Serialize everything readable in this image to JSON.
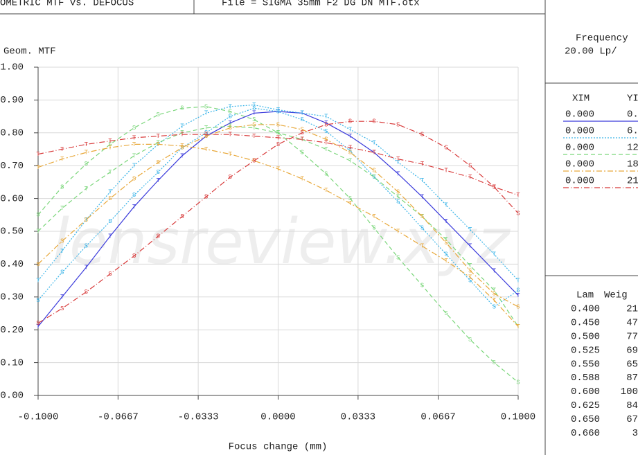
{
  "chart_data": {
    "type": "line",
    "header_left": "OMETRIC MTF vs. DEFOCUS",
    "header_right": "File = SIGMA 35mm F2 DG DN MTF.otx",
    "ylabel": "Geom. MTF",
    "xlabel": "Focus change (mm)",
    "watermark": "lensreview.xyz",
    "grid": true,
    "xlim": [
      -0.1,
      0.1
    ],
    "ylim": [
      0,
      1
    ],
    "xticks": [
      {
        "value": -0.1,
        "label": "-0.1000"
      },
      {
        "value": -0.0667,
        "label": "-0.0667"
      },
      {
        "value": -0.0333,
        "label": "-0.0333"
      },
      {
        "value": 0,
        "label": "0.0000"
      },
      {
        "value": 0.0333,
        "label": "0.0333"
      },
      {
        "value": 0.0667,
        "label": "0.0667"
      },
      {
        "value": 0.1,
        "label": "0.1000"
      }
    ],
    "yticks": [
      {
        "value": 0,
        "label": "0.00"
      },
      {
        "value": 0.1,
        "label": "0.10"
      },
      {
        "value": 0.2,
        "label": "0.20"
      },
      {
        "value": 0.3,
        "label": "0.30"
      },
      {
        "value": 0.4,
        "label": "0.40"
      },
      {
        "value": 0.5,
        "label": "0.50"
      },
      {
        "value": 0.6,
        "label": "0.60"
      },
      {
        "value": 0.7,
        "label": "0.70"
      },
      {
        "value": 0.8,
        "label": "0.80"
      },
      {
        "value": 0.9,
        "label": "0.90"
      },
      {
        "value": 1,
        "label": "1.00"
      }
    ],
    "x": [
      -0.1,
      -0.09,
      -0.08,
      -0.07,
      -0.06,
      -0.05,
      -0.04,
      -0.03,
      -0.02,
      -0.01,
      0,
      0.01,
      0.02,
      0.03,
      0.04,
      0.05,
      0.06,
      0.07,
      0.08,
      0.09,
      0.1
    ],
    "series": [
      {
        "marker": "T",
        "color": "#3b3bdb",
        "dash": "none",
        "values": [
          0.21,
          0.3,
          0.39,
          0.485,
          0.575,
          0.655,
          0.73,
          0.79,
          0.83,
          0.86,
          0.865,
          0.86,
          0.83,
          0.79,
          0.74,
          0.675,
          0.605,
          0.53,
          0.455,
          0.38,
          0.305
        ]
      },
      {
        "marker": "T",
        "color": "#3ab4e8",
        "dash": "2,2",
        "values": [
          0.35,
          0.44,
          0.535,
          0.62,
          0.7,
          0.765,
          0.82,
          0.86,
          0.88,
          0.885,
          0.87,
          0.86,
          0.85,
          0.81,
          0.77,
          0.71,
          0.655,
          0.58,
          0.505,
          0.43,
          0.35
        ]
      },
      {
        "marker": "S",
        "color": "#3ab4e8",
        "dash": "2,2",
        "values": [
          0.29,
          0.375,
          0.455,
          0.53,
          0.61,
          0.68,
          0.755,
          0.8,
          0.85,
          0.875,
          0.865,
          0.84,
          0.805,
          0.745,
          0.665,
          0.59,
          0.51,
          0.43,
          0.35,
          0.27,
          0.32
        ]
      },
      {
        "marker": "T",
        "color": "#7ad67a",
        "dash": "6,4",
        "values": [
          0.5,
          0.57,
          0.63,
          0.68,
          0.73,
          0.77,
          0.8,
          0.815,
          0.82,
          0.815,
          0.8,
          0.78,
          0.75,
          0.715,
          0.665,
          0.605,
          0.545,
          0.475,
          0.395,
          0.32,
          0.21
        ]
      },
      {
        "marker": "S",
        "color": "#7ad67a",
        "dash": "6,4",
        "values": [
          0.55,
          0.635,
          0.705,
          0.765,
          0.815,
          0.855,
          0.875,
          0.88,
          0.865,
          0.84,
          0.8,
          0.74,
          0.675,
          0.6,
          0.51,
          0.42,
          0.335,
          0.25,
          0.17,
          0.1,
          0.04
        ]
      },
      {
        "marker": "T",
        "color": "#e8a83a",
        "dash": "8,3,2,3",
        "values": [
          0.695,
          0.72,
          0.74,
          0.755,
          0.765,
          0.765,
          0.76,
          0.75,
          0.735,
          0.715,
          0.69,
          0.66,
          0.625,
          0.585,
          0.545,
          0.5,
          0.455,
          0.41,
          0.36,
          0.29,
          0.21
        ]
      },
      {
        "marker": "S",
        "color": "#e8a83a",
        "dash": "8,3,2,3",
        "values": [
          0.4,
          0.47,
          0.535,
          0.6,
          0.66,
          0.71,
          0.755,
          0.79,
          0.815,
          0.825,
          0.825,
          0.81,
          0.78,
          0.74,
          0.685,
          0.62,
          0.545,
          0.465,
          0.38,
          0.31,
          0.27
        ]
      },
      {
        "marker": "T",
        "color": "#d83a3a",
        "dash": "8,3,1,3",
        "values": [
          0.735,
          0.75,
          0.765,
          0.775,
          0.785,
          0.79,
          0.795,
          0.795,
          0.795,
          0.79,
          0.785,
          0.78,
          0.77,
          0.755,
          0.74,
          0.72,
          0.705,
          0.685,
          0.665,
          0.635,
          0.61
        ]
      },
      {
        "marker": "S",
        "color": "#d83a3a",
        "dash": "8,3,1,3",
        "values": [
          0.22,
          0.265,
          0.315,
          0.37,
          0.425,
          0.485,
          0.545,
          0.605,
          0.665,
          0.715,
          0.765,
          0.8,
          0.825,
          0.835,
          0.835,
          0.825,
          0.795,
          0.755,
          0.7,
          0.635,
          0.555
        ]
      }
    ],
    "frequency": {
      "label": "Frequency",
      "value": "20.00  Lp/"
    },
    "field_table": {
      "headers": [
        "XIM",
        "YI"
      ],
      "rows": [
        {
          "xim": "0.000",
          "yim": "0.",
          "color": "#3b3bdb",
          "dash": "none"
        },
        {
          "xim": "0.000",
          "yim": "6.",
          "color": "#3ab4e8",
          "dash": "2,2"
        },
        {
          "xim": "0.000",
          "yim": "12.",
          "color": "#7ad67a",
          "dash": "6,4"
        },
        {
          "xim": "0.000",
          "yim": "18.",
          "color": "#e8a83a",
          "dash": "8,3,2,3"
        },
        {
          "xim": "0.000",
          "yim": "21.",
          "color": "#d83a3a",
          "dash": "8,3,1,3"
        }
      ]
    },
    "wave_table": {
      "headers": [
        "Lam",
        "Weig"
      ],
      "rows": [
        [
          "0.400",
          "21"
        ],
        [
          "0.450",
          "47"
        ],
        [
          "0.500",
          "77"
        ],
        [
          "0.525",
          "69"
        ],
        [
          "0.550",
          "65"
        ],
        [
          "0.588",
          "87"
        ],
        [
          "0.600",
          "100"
        ],
        [
          "0.625",
          "84"
        ],
        [
          "0.650",
          "67"
        ],
        [
          "0.660",
          "3"
        ]
      ]
    }
  }
}
